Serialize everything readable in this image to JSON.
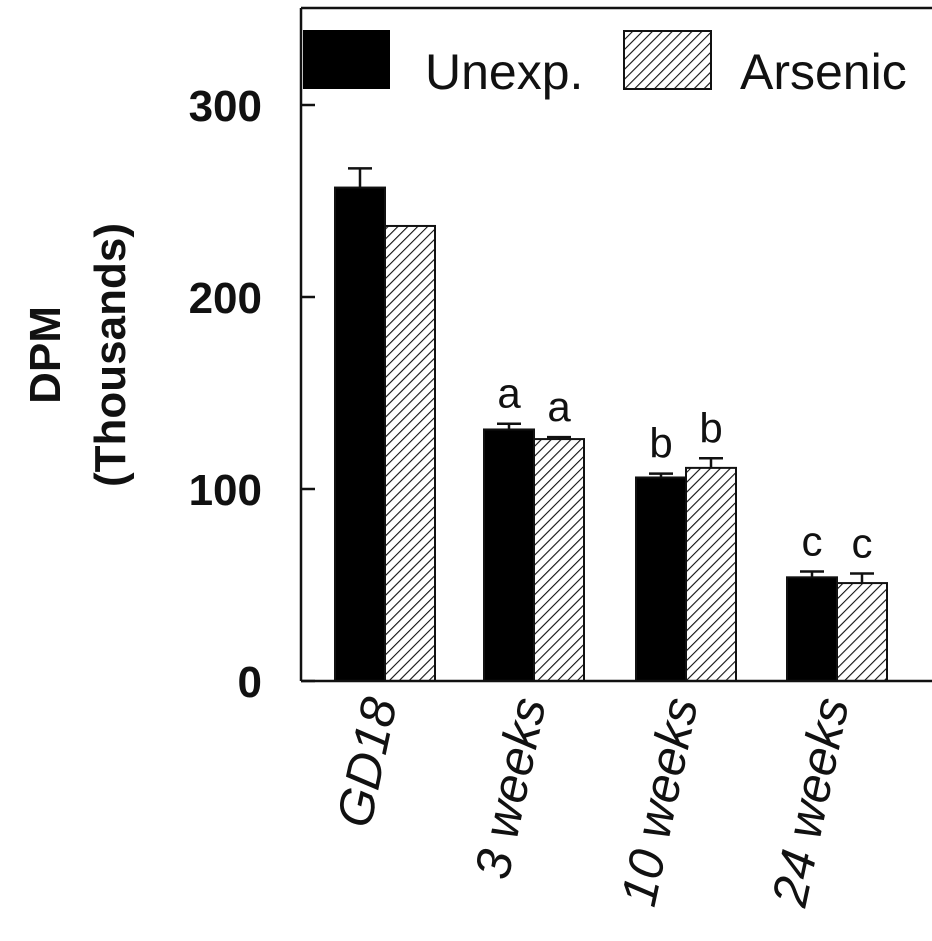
{
  "chart_data": {
    "type": "bar",
    "title": "",
    "ylabel_lines": [
      "DPM",
      "(Thousands)"
    ],
    "xlabel": "",
    "ylim": [
      0,
      350
    ],
    "yticks": [
      0,
      100,
      200,
      300
    ],
    "categories": [
      "GD18",
      "3 weeks",
      "10 weeks",
      "24 weeks"
    ],
    "series": [
      {
        "name": "Unexp.",
        "pattern": "solid",
        "color": "#000000",
        "values": [
          257,
          131,
          106,
          54
        ],
        "errors": [
          10,
          3,
          2,
          3
        ],
        "labels": [
          "",
          "a",
          "b",
          "c"
        ]
      },
      {
        "name": "Arsenic",
        "pattern": "hatched",
        "color": "#ffffff",
        "values": [
          237,
          126,
          111,
          51
        ],
        "errors": [
          0,
          1,
          5,
          5
        ],
        "labels": [
          "",
          "a",
          "b",
          "c"
        ]
      }
    ],
    "legend_position": "top",
    "grid": false
  }
}
